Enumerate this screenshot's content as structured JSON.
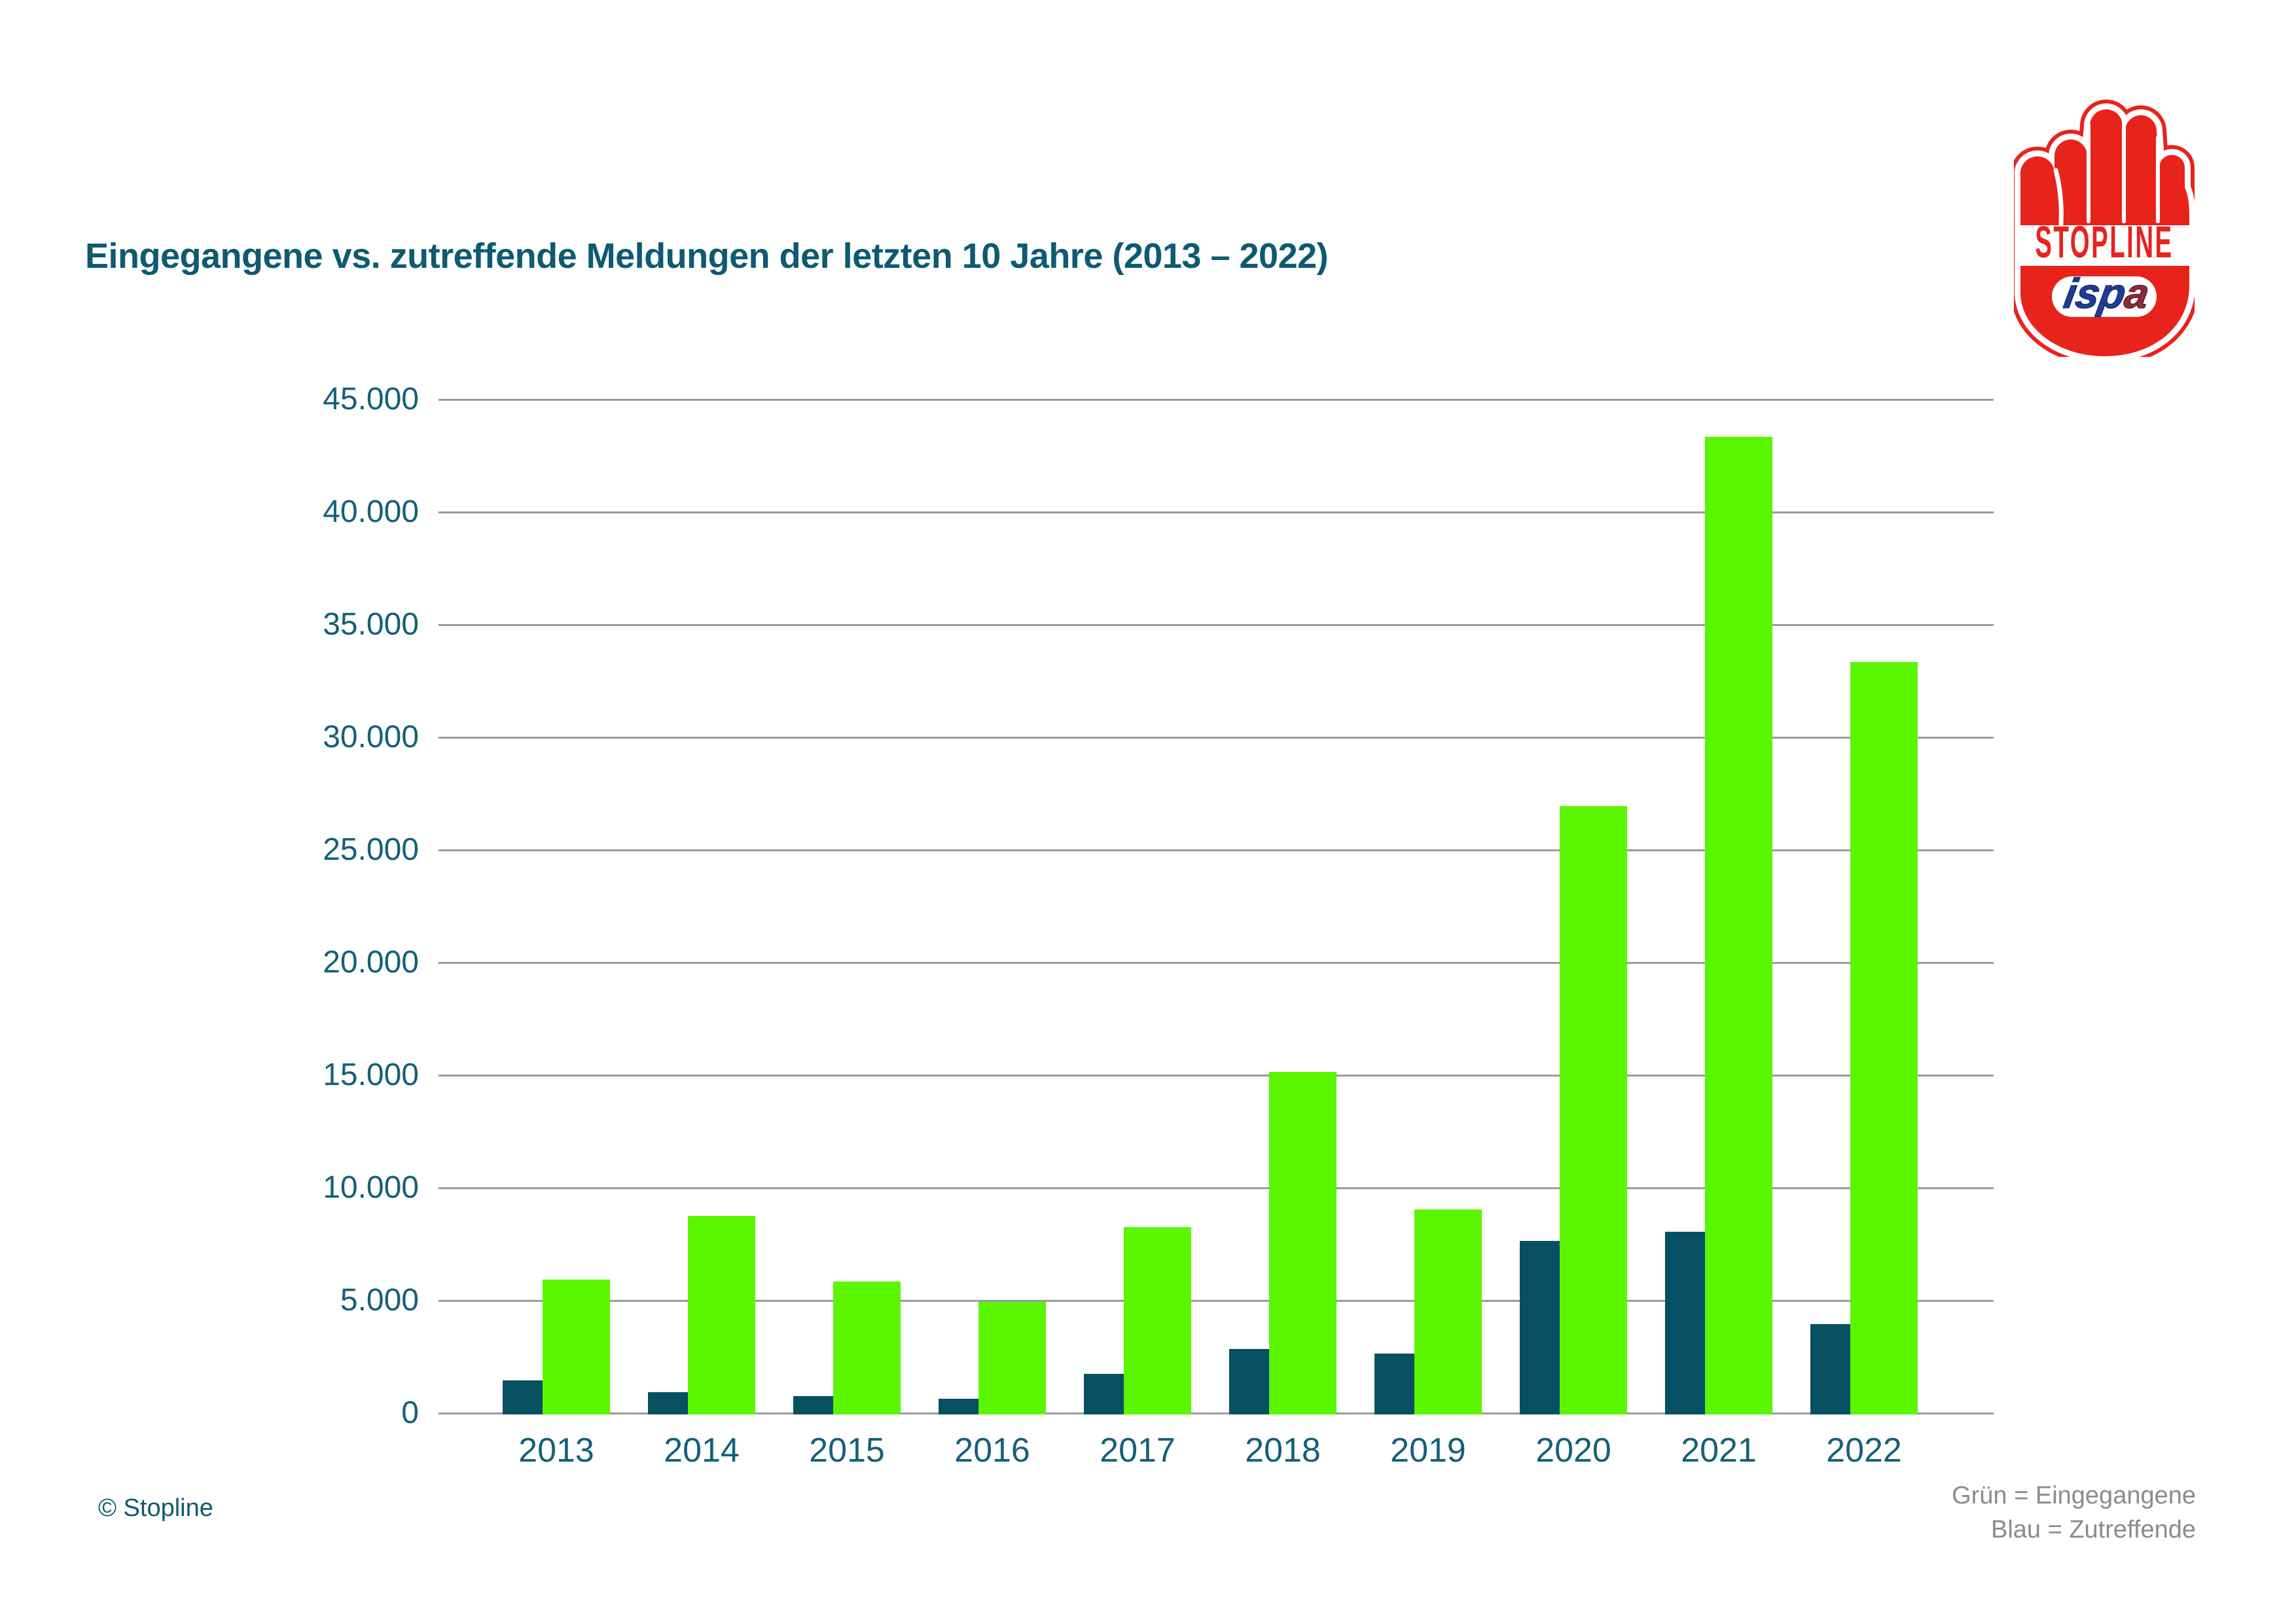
{
  "title": "Eingegangene vs. zutreffende Meldungen der letzten 10 Jahre (2013 – 2022)",
  "copyright": "© Stopline",
  "legend": {
    "line1": "Grün = Eingegangene",
    "line2": "Blau = Zutreffende"
  },
  "logo": {
    "stopline_text": "STOPLINE",
    "ispa_text_blue": "isp",
    "ispa_text_claret": "a",
    "red": "#e8231c",
    "ispa_blue": "#1d3e94",
    "ispa_claret": "#8f2b38"
  },
  "colors": {
    "green": "#5bf500",
    "blue": "#075064",
    "text_teal": "#14607a",
    "title_teal": "#0d5a72",
    "grid": "#9b9b9b",
    "legend_gray": "#8b8b8b"
  },
  "chart_data": {
    "type": "bar",
    "title": "Eingegangene vs. zutreffende Meldungen der letzten 10 Jahre (2013 – 2022)",
    "categories": [
      "2013",
      "2014",
      "2015",
      "2016",
      "2017",
      "2018",
      "2019",
      "2020",
      "2021",
      "2022"
    ],
    "series": [
      {
        "name": "Eingegangene",
        "color": "#5bf500",
        "values": [
          6000,
          8800,
          5900,
          5000,
          8300,
          15200,
          9100,
          27000,
          43400,
          33400
        ]
      },
      {
        "name": "Zutreffende",
        "color": "#075064",
        "values": [
          1500,
          1000,
          800,
          700,
          1800,
          2900,
          2700,
          7700,
          8100,
          4000
        ]
      }
    ],
    "ylim": [
      0,
      45000
    ],
    "y_ticks": [
      {
        "value": 45000,
        "label": "45.000"
      },
      {
        "value": 40000,
        "label": "40.000"
      },
      {
        "value": 35000,
        "label": "35.000"
      },
      {
        "value": 30000,
        "label": "30.000"
      },
      {
        "value": 25000,
        "label": "25.000"
      },
      {
        "value": 20000,
        "label": "20.000"
      },
      {
        "value": 15000,
        "label": "15.000"
      },
      {
        "value": 10000,
        "label": "10.000"
      },
      {
        "value": 5000,
        "label": "5.000"
      },
      {
        "value": 0,
        "label": "0"
      }
    ],
    "grid": true,
    "legend_position": "bottom-right",
    "legend_note": [
      "Grün = Eingegangene",
      "Blau = Zutreffende"
    ]
  }
}
